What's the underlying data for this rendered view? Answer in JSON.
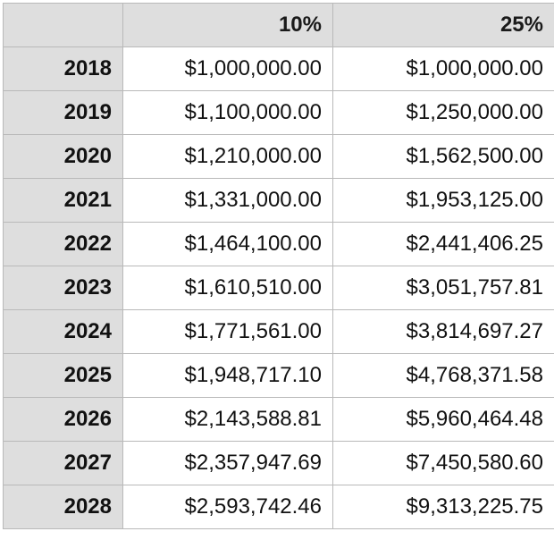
{
  "table": {
    "corner": "",
    "columns": [
      "10%",
      "25%"
    ],
    "rows": [
      {
        "year": "2018",
        "values": [
          "$1,000,000.00",
          "$1,000,000.00"
        ]
      },
      {
        "year": "2019",
        "values": [
          "$1,100,000.00",
          "$1,250,000.00"
        ]
      },
      {
        "year": "2020",
        "values": [
          "$1,210,000.00",
          "$1,562,500.00"
        ]
      },
      {
        "year": "2021",
        "values": [
          "$1,331,000.00",
          "$1,953,125.00"
        ]
      },
      {
        "year": "2022",
        "values": [
          "$1,464,100.00",
          "$2,441,406.25"
        ]
      },
      {
        "year": "2023",
        "values": [
          "$1,610,510.00",
          "$3,051,757.81"
        ]
      },
      {
        "year": "2024",
        "values": [
          "$1,771,561.00",
          "$3,814,697.27"
        ]
      },
      {
        "year": "2025",
        "values": [
          "$1,948,717.10",
          "$4,768,371.58"
        ]
      },
      {
        "year": "2026",
        "values": [
          "$2,143,588.81",
          "$5,960,464.48"
        ]
      },
      {
        "year": "2027",
        "values": [
          "$2,357,947.69",
          "$7,450,580.60"
        ]
      },
      {
        "year": "2028",
        "values": [
          "$2,593,742.46",
          "$9,313,225.75"
        ]
      }
    ]
  },
  "colors": {
    "header_background": "#dedede",
    "grid_line": "#b9b9b9",
    "cell_background": "#ffffff"
  }
}
